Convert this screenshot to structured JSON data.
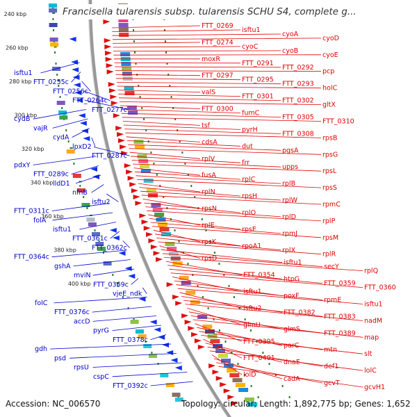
{
  "title": "Francisella tularensis subsp. tularensis SCHU S4, complete g...",
  "footer": {
    "accession": "Accession: NC_006570",
    "summary": "Topology: circular; Length: 1,892,775 bp; Genes: 1,652"
  },
  "colors": {
    "forward_label": "#e00000",
    "reverse_label": "#0000cc",
    "backbone": "#999999",
    "tick_dots": "#2a7a2a"
  },
  "ticks": [
    "240 kbp",
    "260 kbp",
    "280 kbp",
    "300 kbp",
    "320 kbp",
    "340 kbp",
    "360 kbp",
    "380 kbp",
    "400 kbp"
  ],
  "reverse_labels": [
    "isftu1",
    "FTT_0255c",
    "FTT_0256c",
    "FTT_0264c",
    "FTT_0277c",
    "cydB",
    "vajR",
    "cydA",
    "lpxD2",
    "FTT_0287c",
    "pdxY",
    "FTT_0289c",
    "lldD1",
    "nfnB",
    "isftu2",
    "FTT_0311c",
    "folA",
    "isftu1",
    "FTT_0361c",
    "FTT_0362c",
    "FTT_0364c",
    "gshA",
    "mviN",
    "FTT_0369c",
    "vjeE_ndk",
    "folC",
    "FTT_0376c",
    "accD",
    "pyrG",
    "FTT_0378c",
    "gdh",
    "psd",
    "rpsU",
    "cspC",
    "FTT_0392c"
  ],
  "forward_labels": [
    "FTT_0269",
    "isftu1",
    "cyoA",
    "cyoD",
    "FTT_0274",
    "cyoC",
    "cyoB",
    "cyoE",
    "moxR",
    "FTT_0291",
    "FTT_0292",
    "pcp",
    "FTT_0297",
    "FTT_0295",
    "FTT_0293",
    "holC",
    "valS",
    "FTT_0301",
    "FTT_0302",
    "gltX",
    "FTT_0300",
    "fumC",
    "FTT_0305",
    "FTT_0310",
    "tsf",
    "pyrH",
    "FTT_0308",
    "rpsB",
    "cdsA",
    "dut",
    "pgsA",
    "rpsG",
    "rplV",
    "frr",
    "upps",
    "rpsL",
    "fusA",
    "rplC",
    "rplB",
    "rpsS",
    "rplN",
    "rpsH",
    "rplW",
    "rpmC",
    "rpsN",
    "rplO",
    "rplD",
    "rplP",
    "rplE",
    "rpsE",
    "rpmJ",
    "rpsM",
    "rpsK",
    "rpoA1",
    "rplX",
    "rplR",
    "rpsD",
    "isftu1",
    "secY",
    "rplQ",
    "FTT_0354",
    "htpG",
    "FTT_0359",
    "FTT_0360",
    "isftu1",
    "poxF",
    "rpmE",
    "isftu1",
    "isftu2",
    "FTT_0382",
    "FTT_0383",
    "nadM",
    "glmU",
    "glmS",
    "FTT_0389",
    "map",
    "FTT_0395",
    "parC",
    "mtn",
    "slt",
    "FTT_0401",
    "dnaE",
    "def1",
    "lolC",
    "lolD",
    "cadA",
    "gcvT",
    "gcvH1"
  ]
}
